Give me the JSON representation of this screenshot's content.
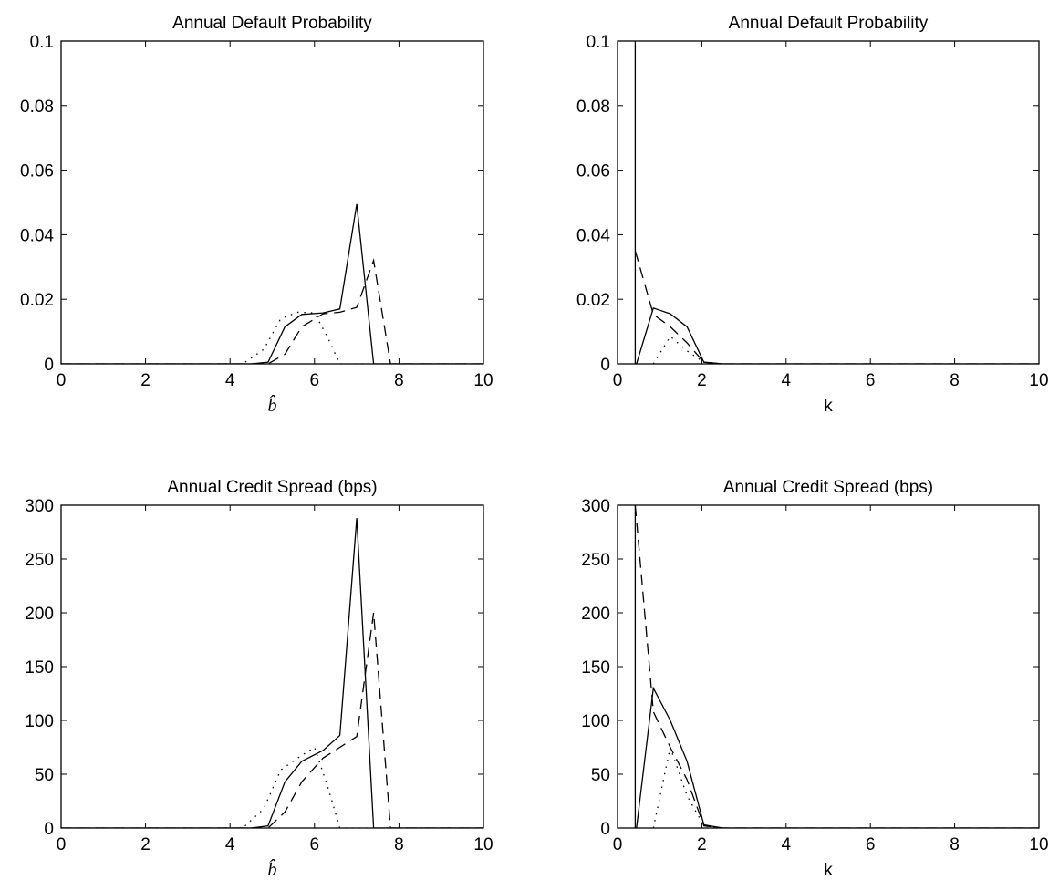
{
  "chart_data": [
    {
      "type": "line",
      "title": "Annual Default Probability",
      "xlabel": "b̂",
      "ylabel": "",
      "xlim": [
        0,
        10
      ],
      "ylim": [
        0,
        0.1
      ],
      "xticks": [
        "0",
        "2",
        "4",
        "6",
        "8",
        "10"
      ],
      "yticks": [
        "0",
        "0.02",
        "0.04",
        "0.06",
        "0.08",
        "0.1"
      ],
      "series": [
        {
          "style": "solid",
          "x": [
            0,
            4.5,
            4.9,
            5.3,
            5.7,
            6.2,
            6.6,
            7.0,
            7.4,
            10
          ],
          "y": [
            0,
            0,
            0.0005,
            0.0115,
            0.0153,
            0.0158,
            0.017,
            0.0495,
            0,
            0
          ]
        },
        {
          "style": "dashed",
          "x": [
            0,
            4.9,
            5.3,
            5.7,
            6.2,
            6.6,
            7.0,
            7.4,
            7.8,
            10
          ],
          "y": [
            0,
            0,
            0.003,
            0.0115,
            0.0155,
            0.016,
            0.0175,
            0.032,
            0,
            0
          ]
        },
        {
          "style": "dotted",
          "x": [
            0,
            4.3,
            4.8,
            5.2,
            5.6,
            6.0,
            6.3,
            6.6,
            10
          ],
          "y": [
            0,
            0,
            0.0045,
            0.014,
            0.016,
            0.0158,
            0.0085,
            0,
            0
          ]
        }
      ]
    },
    {
      "type": "line",
      "title": "Annual Default Probability",
      "xlabel": "k",
      "ylabel": "",
      "xlim": [
        0,
        10
      ],
      "ylim": [
        0,
        0.1
      ],
      "xticks": [
        "0",
        "2",
        "4",
        "6",
        "8",
        "10"
      ],
      "yticks": [
        "0",
        "0.02",
        "0.04",
        "0.06",
        "0.08",
        "0.1"
      ],
      "series": [
        {
          "style": "solid",
          "x": [
            0.42,
            0.42,
            0.45,
            0.85,
            1.25,
            1.65,
            2.05,
            2.5,
            10
          ],
          "y": [
            0.1,
            0,
            0,
            0.0173,
            0.0155,
            0.0115,
            0.0005,
            0,
            0
          ]
        },
        {
          "style": "dashed",
          "x": [
            0.42,
            0.85,
            1.25,
            1.65,
            2.05,
            2.5,
            10
          ],
          "y": [
            0.035,
            0.0153,
            0.0115,
            0.0065,
            0.0005,
            0,
            0
          ]
        },
        {
          "style": "dotted",
          "x": [
            0.85,
            1.25,
            1.65,
            2.05,
            2.5
          ],
          "y": [
            0,
            0.0085,
            0.004,
            0.0005,
            0
          ]
        }
      ]
    },
    {
      "type": "line",
      "title": "Annual Credit Spread (bps)",
      "xlabel": "b̂",
      "ylabel": "",
      "xlim": [
        0,
        10
      ],
      "ylim": [
        0,
        300
      ],
      "xticks": [
        "0",
        "2",
        "4",
        "6",
        "8",
        "10"
      ],
      "yticks": [
        "0",
        "50",
        "100",
        "150",
        "200",
        "250",
        "300"
      ],
      "series": [
        {
          "style": "solid",
          "x": [
            0,
            4.5,
            4.9,
            5.3,
            5.7,
            6.2,
            6.6,
            7.0,
            7.4,
            10
          ],
          "y": [
            0,
            0,
            2,
            43,
            62,
            72,
            86,
            288,
            0,
            0
          ]
        },
        {
          "style": "dashed",
          "x": [
            0,
            4.9,
            5.3,
            5.7,
            6.2,
            6.6,
            7.0,
            7.4,
            7.8,
            10
          ],
          "y": [
            0,
            0,
            15,
            43,
            65,
            75,
            85,
            200,
            0,
            0
          ]
        },
        {
          "style": "dotted",
          "x": [
            0,
            4.3,
            4.8,
            5.2,
            5.6,
            6.0,
            6.3,
            6.6,
            10
          ],
          "y": [
            0,
            0,
            18,
            54,
            65,
            75,
            40,
            0,
            0
          ]
        }
      ]
    },
    {
      "type": "line",
      "title": "Annual Credit Spread (bps)",
      "xlabel": "k",
      "ylabel": "",
      "xlim": [
        0,
        10
      ],
      "ylim": [
        0,
        300
      ],
      "xticks": [
        "0",
        "2",
        "4",
        "6",
        "8",
        "10"
      ],
      "yticks": [
        "0",
        "50",
        "100",
        "150",
        "200",
        "250",
        "300"
      ],
      "series": [
        {
          "style": "solid",
          "x": [
            0.42,
            0.42,
            0.45,
            0.85,
            1.25,
            1.65,
            2.05,
            2.5,
            10
          ],
          "y": [
            300,
            0,
            0,
            130,
            100,
            62,
            3,
            0,
            0
          ]
        },
        {
          "style": "dashed",
          "x": [
            0.42,
            0.85,
            1.25,
            1.65,
            2.05,
            2.5,
            10
          ],
          "y": [
            300,
            108,
            75,
            45,
            2,
            0,
            0
          ]
        },
        {
          "style": "dotted",
          "x": [
            0.85,
            1.25,
            1.65,
            2.05,
            2.5
          ],
          "y": [
            0,
            75,
            30,
            2,
            0
          ]
        }
      ]
    }
  ]
}
